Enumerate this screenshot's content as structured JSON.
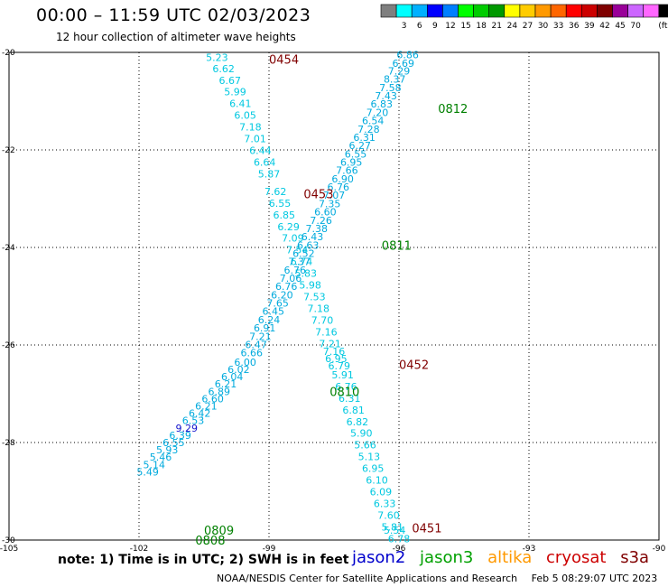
{
  "header": {
    "title": "00:00 – 11:59 UTC 02/03/2023",
    "subtitle": "12 hour collection of altimeter wave heights"
  },
  "colorbar": {
    "colors": [
      "#7f7f7f",
      "#00ffff",
      "#00b0ff",
      "#0000ff",
      "#007fff",
      "#00ff00",
      "#00cc00",
      "#009900",
      "#ffff00",
      "#ffcc00",
      "#ff9900",
      "#ff6600",
      "#ff0000",
      "#cc0000",
      "#7f0000",
      "#990099",
      "#cc66ff",
      "#ff66ff",
      "#000000"
    ],
    "labels": [
      "3",
      "6",
      "9",
      "12",
      "15",
      "18",
      "21",
      "24",
      "27",
      "30",
      "33",
      "36",
      "39",
      "42",
      "45",
      "70",
      "(ft)"
    ]
  },
  "chart_data": {
    "type": "scatter",
    "xlim": [
      -105,
      -90
    ],
    "ylim": [
      -30,
      -20
    ],
    "xticks": [
      "-105",
      "-102",
      "-99",
      "-96",
      "-93",
      "-90"
    ],
    "yticks": [
      "-20",
      "-22",
      "-24",
      "-26",
      "-28",
      "-30"
    ],
    "grid": true,
    "series": [
      {
        "track": "descending",
        "color": "#00c8e0",
        "points": [
          {
            "x": -100.2,
            "y": -20.1,
            "v": "5.23"
          },
          {
            "x": -100.05,
            "y": -20.33,
            "v": "6.62"
          },
          {
            "x": -99.9,
            "y": -20.57,
            "v": "6.67"
          },
          {
            "x": -99.78,
            "y": -20.81,
            "v": "5.99"
          },
          {
            "x": -99.66,
            "y": -21.05,
            "v": "6.41"
          },
          {
            "x": -99.55,
            "y": -21.29,
            "v": "6.05"
          },
          {
            "x": -99.43,
            "y": -21.53,
            "v": "7.18"
          },
          {
            "x": -99.32,
            "y": -21.77,
            "v": "7.01"
          },
          {
            "x": -99.2,
            "y": -22.01,
            "v": "6.44"
          },
          {
            "x": -99.1,
            "y": -22.25,
            "v": "6.64"
          },
          {
            "x": -99.0,
            "y": -22.49,
            "v": "5.87"
          },
          {
            "x": -98.85,
            "y": -22.85,
            "v": "7.62"
          },
          {
            "x": -98.75,
            "y": -23.09,
            "v": "6.55"
          },
          {
            "x": -98.65,
            "y": -23.33,
            "v": "6.85"
          },
          {
            "x": -98.55,
            "y": -23.57,
            "v": "6.29"
          },
          {
            "x": -98.45,
            "y": -23.81,
            "v": "7.09"
          },
          {
            "x": -98.35,
            "y": -24.05,
            "v": "7.54"
          },
          {
            "x": -98.25,
            "y": -24.29,
            "v": "6.74"
          },
          {
            "x": -98.15,
            "y": -24.53,
            "v": "5.83"
          },
          {
            "x": -98.05,
            "y": -24.77,
            "v": "5.98"
          },
          {
            "x": -97.95,
            "y": -25.01,
            "v": "7.53"
          },
          {
            "x": -97.86,
            "y": -25.25,
            "v": "7.18"
          },
          {
            "x": -97.77,
            "y": -25.49,
            "v": "7.70"
          },
          {
            "x": -97.68,
            "y": -25.73,
            "v": "7.16"
          },
          {
            "x": -97.59,
            "y": -25.97,
            "v": "7.21"
          },
          {
            "x": -97.5,
            "y": -26.13,
            "v": "7.16"
          },
          {
            "x": -97.45,
            "y": -26.28,
            "v": "6.95"
          },
          {
            "x": -97.38,
            "y": -26.43,
            "v": "6.79"
          },
          {
            "x": -97.3,
            "y": -26.61,
            "v": "5.91"
          },
          {
            "x": -97.22,
            "y": -26.85,
            "v": "6.76"
          },
          {
            "x": -97.14,
            "y": -27.09,
            "v": "6.31"
          },
          {
            "x": -97.05,
            "y": -27.33,
            "v": "6.81"
          },
          {
            "x": -96.96,
            "y": -27.57,
            "v": "6.82"
          },
          {
            "x": -96.87,
            "y": -27.81,
            "v": "5.90"
          },
          {
            "x": -96.78,
            "y": -28.05,
            "v": "5.66"
          },
          {
            "x": -96.69,
            "y": -28.29,
            "v": "5.13"
          },
          {
            "x": -96.6,
            "y": -28.53,
            "v": "6.95"
          },
          {
            "x": -96.51,
            "y": -28.77,
            "v": "6.10"
          },
          {
            "x": -96.42,
            "y": -29.01,
            "v": "6.09"
          },
          {
            "x": -96.33,
            "y": -29.25,
            "v": "6.33"
          },
          {
            "x": -96.24,
            "y": -29.49,
            "v": "7.60"
          },
          {
            "x": -96.15,
            "y": -29.73,
            "v": "5.81"
          },
          {
            "x": -96.1,
            "y": -29.8,
            "v": "5.54"
          },
          {
            "x": -96.0,
            "y": -29.97,
            "v": "6.78"
          }
        ],
        "labels": [
          {
            "text": "0454",
            "x": -99.0,
            "y": -20.14,
            "color": "#800000"
          },
          {
            "text": "0453",
            "x": -98.2,
            "y": -22.9,
            "color": "#800000"
          },
          {
            "text": "0452",
            "x": -96.0,
            "y": -26.4,
            "color": "#800000"
          },
          {
            "text": "0451",
            "x": -95.7,
            "y": -29.75,
            "color": "#800000"
          }
        ]
      },
      {
        "track": "ascending",
        "color": "#00aadd",
        "points": [
          {
            "x": -95.8,
            "y": -20.05,
            "v": "6.86"
          },
          {
            "x": -95.9,
            "y": -20.22,
            "v": "6.69"
          },
          {
            "x": -96.0,
            "y": -20.38,
            "v": "7.29"
          },
          {
            "x": -96.1,
            "y": -20.55,
            "v": "8.37"
          },
          {
            "x": -96.2,
            "y": -20.72,
            "v": "7.58"
          },
          {
            "x": -96.3,
            "y": -20.89,
            "v": "7.43"
          },
          {
            "x": -96.4,
            "y": -21.06,
            "v": "6.83"
          },
          {
            "x": -96.5,
            "y": -21.23,
            "v": "7.20"
          },
          {
            "x": -96.6,
            "y": -21.4,
            "v": "6.54"
          },
          {
            "x": -96.7,
            "y": -21.57,
            "v": "7.28"
          },
          {
            "x": -96.8,
            "y": -21.74,
            "v": "6.31"
          },
          {
            "x": -96.9,
            "y": -21.91,
            "v": "6.27"
          },
          {
            "x": -97.0,
            "y": -22.08,
            "v": "6.55"
          },
          {
            "x": -97.1,
            "y": -22.25,
            "v": "6.95"
          },
          {
            "x": -97.2,
            "y": -22.42,
            "v": "7.66"
          },
          {
            "x": -97.3,
            "y": -22.59,
            "v": "6.90"
          },
          {
            "x": -97.4,
            "y": -22.76,
            "v": "6.76"
          },
          {
            "x": -97.5,
            "y": -22.93,
            "v": "7.07"
          },
          {
            "x": -97.6,
            "y": -23.1,
            "v": "7.35"
          },
          {
            "x": -97.7,
            "y": -23.27,
            "v": "6.60"
          },
          {
            "x": -97.8,
            "y": -23.44,
            "v": "7.26"
          },
          {
            "x": -97.9,
            "y": -23.61,
            "v": "7.38"
          },
          {
            "x": -98.0,
            "y": -23.78,
            "v": "6.43"
          },
          {
            "x": -98.1,
            "y": -23.95,
            "v": "6.63"
          },
          {
            "x": -98.2,
            "y": -24.12,
            "v": "6.52"
          },
          {
            "x": -98.3,
            "y": -24.29,
            "v": "7.37"
          },
          {
            "x": -98.4,
            "y": -24.46,
            "v": "6.76"
          },
          {
            "x": -98.5,
            "y": -24.63,
            "v": "7.06"
          },
          {
            "x": -98.6,
            "y": -24.8,
            "v": "6.76"
          },
          {
            "x": -98.7,
            "y": -24.97,
            "v": "6.20"
          },
          {
            "x": -98.8,
            "y": -25.14,
            "v": "7.65"
          },
          {
            "x": -98.9,
            "y": -25.31,
            "v": "6.45"
          },
          {
            "x": -99.0,
            "y": -25.48,
            "v": "6.24"
          },
          {
            "x": -99.1,
            "y": -25.65,
            "v": "6.91"
          },
          {
            "x": -99.2,
            "y": -25.82,
            "v": "7.21"
          },
          {
            "x": -99.3,
            "y": -25.99,
            "v": "6.47"
          },
          {
            "x": -99.4,
            "y": -26.16,
            "v": "6.66"
          },
          {
            "x": -99.55,
            "y": -26.35,
            "v": "6.00"
          },
          {
            "x": -99.7,
            "y": -26.5,
            "v": "6.02"
          },
          {
            "x": -99.85,
            "y": -26.65,
            "v": "6.04"
          },
          {
            "x": -100.0,
            "y": -26.8,
            "v": "6.21"
          },
          {
            "x": -100.15,
            "y": -26.95,
            "v": "6.89"
          },
          {
            "x": -100.3,
            "y": -27.1,
            "v": "6.60"
          },
          {
            "x": -100.45,
            "y": -27.25,
            "v": "6.21"
          },
          {
            "x": -100.6,
            "y": -27.4,
            "v": "6.42"
          },
          {
            "x": -100.75,
            "y": -27.55,
            "v": "6.53"
          },
          {
            "x": -100.9,
            "y": -27.7,
            "v": "9.29",
            "color": "#1010cc"
          },
          {
            "x": -101.05,
            "y": -27.85,
            "v": "6.39"
          },
          {
            "x": -101.2,
            "y": -28.0,
            "v": "6.55"
          },
          {
            "x": -101.35,
            "y": -28.15,
            "v": "5.93"
          },
          {
            "x": -101.5,
            "y": -28.3,
            "v": "5.46"
          },
          {
            "x": -101.65,
            "y": -28.45,
            "v": "5.14"
          },
          {
            "x": -101.8,
            "y": -28.6,
            "v": "5.49"
          }
        ],
        "labels": [
          {
            "text": "0812",
            "x": -95.1,
            "y": -21.15,
            "color": "#008000"
          },
          {
            "text": "0811",
            "x": -96.4,
            "y": -23.95,
            "color": "#008000"
          },
          {
            "text": "0810",
            "x": -97.6,
            "y": -26.95,
            "color": "#008000"
          },
          {
            "text": "0809",
            "x": -100.5,
            "y": -29.8,
            "color": "#008000"
          },
          {
            "text": "0808",
            "x": -100.7,
            "y": -30.0,
            "color": "#008000"
          }
        ]
      }
    ]
  },
  "footer": {
    "note": "note: 1) Time is in UTC; 2) SWH is in feet",
    "legend": [
      {
        "label": "jason2",
        "color": "#0000cc"
      },
      {
        "label": "jason3",
        "color": "#00a000"
      },
      {
        "label": "altika",
        "color": "#ff9900"
      },
      {
        "label": "cryosat",
        "color": "#cc0000"
      },
      {
        "label": "s3a",
        "color": "#800000"
      }
    ],
    "credit": "NOAA/NESDIS Center for Satellite Applications and Research",
    "timestamp": "Feb  5 08:29:07 UTC 2023"
  }
}
